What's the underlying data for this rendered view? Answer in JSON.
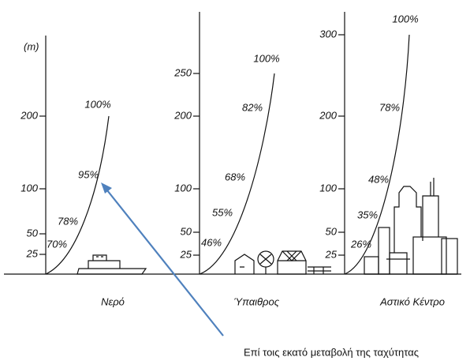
{
  "unit_label": "(m)",
  "panels": [
    {
      "label": "Νερό",
      "axis_labels": [
        "25",
        "50",
        "100",
        "200"
      ],
      "curve_labels": [
        "70%",
        "78%",
        "95%",
        "100%"
      ]
    },
    {
      "label": "Ύπαιθρος",
      "axis_labels": [
        "25",
        "50",
        "100",
        "200",
        "250"
      ],
      "curve_labels": [
        "46%",
        "55%",
        "68%",
        "82%",
        "100%"
      ]
    },
    {
      "label": "Αστικό Κέντρο",
      "axis_labels": [
        "25",
        "50",
        "100",
        "200",
        "300"
      ],
      "curve_labels": [
        "26%",
        "35%",
        "48%",
        "78%",
        "100%"
      ]
    }
  ],
  "caption": "Επί τοις εκατό μεταβολή της ταχύτητας"
}
